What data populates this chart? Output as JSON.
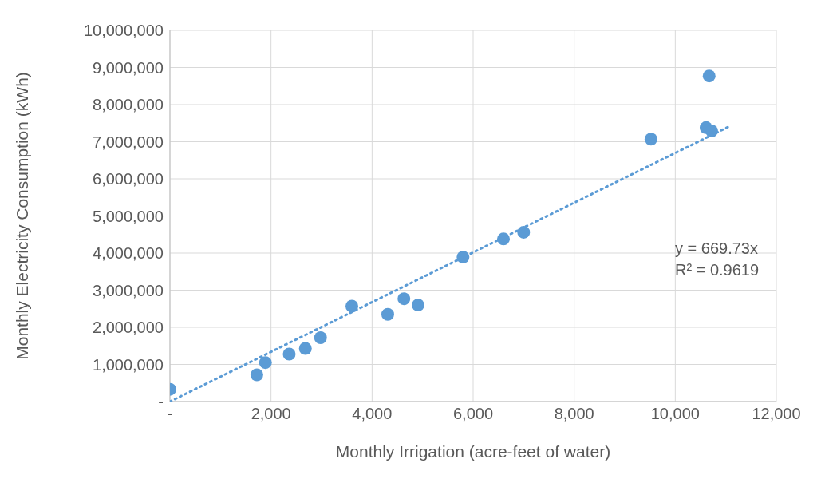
{
  "chart_data": {
    "type": "scatter",
    "xlabel": "Monthly Irrigation (acre-feet  of water)",
    "ylabel": "Monthly Electricity Consumption (kWh)",
    "series": [
      {
        "type": "scatter",
        "color": "#5b9bd5",
        "x": [
          0,
          1720,
          1890,
          2360,
          2680,
          2980,
          3600,
          4310,
          4630,
          4910,
          5800,
          6600,
          7000,
          9520,
          10610,
          10720,
          10670
        ],
        "values": [
          330000,
          720000,
          1050000,
          1280000,
          1430000,
          1720000,
          2570000,
          2350000,
          2770000,
          2600000,
          3890000,
          4380000,
          4560000,
          7070000,
          7380000,
          7290000,
          8770000
        ],
        "marker": "circle"
      },
      {
        "type": "line",
        "color": "#5b9bd5",
        "x": [
          0,
          11050
        ],
        "values": [
          0,
          7400000
        ],
        "line_style": "dotted",
        "marker": "none"
      }
    ],
    "xlim": [
      0,
      12000
    ],
    "ylim": [
      0,
      10000000
    ],
    "xticks": [
      {
        "value": 0,
        "label": "-"
      },
      {
        "value": 2000,
        "label": "2,000"
      },
      {
        "value": 4000,
        "label": "4,000"
      },
      {
        "value": 6000,
        "label": "6,000"
      },
      {
        "value": 8000,
        "label": "8,000"
      },
      {
        "value": 10000,
        "label": "10,000"
      },
      {
        "value": 12000,
        "label": "12,000"
      }
    ],
    "yticks": [
      {
        "value": 0,
        "label": "-"
      },
      {
        "value": 1000000,
        "label": "1,000,000"
      },
      {
        "value": 2000000,
        "label": "2,000,000"
      },
      {
        "value": 3000000,
        "label": "3,000,000"
      },
      {
        "value": 4000000,
        "label": "4,000,000"
      },
      {
        "value": 5000000,
        "label": "5,000,000"
      },
      {
        "value": 6000000,
        "label": "6,000,000"
      },
      {
        "value": 7000000,
        "label": "7,000,000"
      },
      {
        "value": 8000000,
        "label": "8,000,000"
      },
      {
        "value": 9000000,
        "label": "9,000,000"
      },
      {
        "value": 10000000,
        "label": "10,000,000"
      }
    ],
    "grid": true,
    "legend": false,
    "annotations": [
      "y = 669.73x",
      "R² = 0.9619"
    ]
  }
}
